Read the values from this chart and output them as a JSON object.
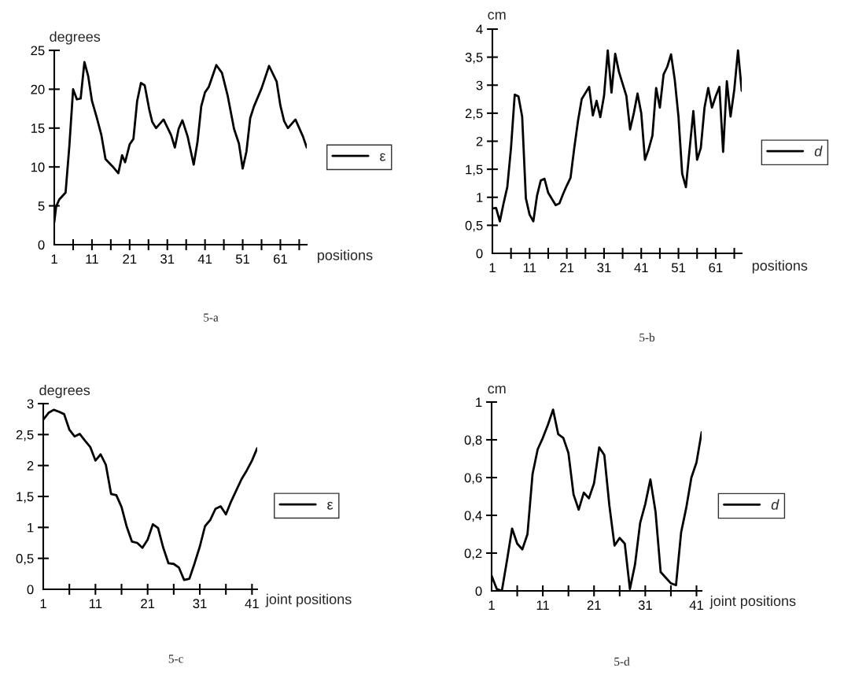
{
  "chart_data": [
    {
      "type": "line",
      "ylabel": "degrees",
      "xlabel": "positions",
      "legend": "right",
      "annotations": [
        "5-a"
      ],
      "xlim": [
        1,
        68
      ],
      "xticks": [
        1,
        {
          "value": 6,
          "label": null
        },
        11,
        {
          "value": 16,
          "label": null
        },
        21,
        {
          "value": 26,
          "label": null
        },
        31,
        {
          "value": 36,
          "label": null
        },
        41,
        {
          "value": 46,
          "label": null
        },
        51,
        {
          "value": 56,
          "label": null
        },
        61,
        {
          "value": 66,
          "label": null
        }
      ],
      "ylim": [
        0,
        25
      ],
      "yticks": [
        0,
        5,
        10,
        15,
        20,
        25
      ],
      "series": [
        {
          "name": "ε",
          "color": "#000000",
          "x": [
            1,
            1.5,
            2.3,
            4,
            5,
            6,
            7,
            8,
            9,
            10,
            11,
            12.3,
            13.5,
            14.6,
            16.4,
            18,
            19,
            19.8,
            21,
            22,
            23,
            24,
            25,
            26.2,
            27,
            28,
            30,
            32,
            33,
            34,
            35,
            36.4,
            38,
            39,
            40,
            41,
            42,
            44,
            45.5,
            47,
            48.7,
            50,
            51,
            52,
            53,
            54,
            56,
            58,
            60,
            61,
            62,
            63,
            65,
            67,
            68
          ],
          "values": [
            2.9,
            4.9,
            5.8,
            6.7,
            12.7,
            20,
            18.7,
            18.8,
            23.5,
            21.7,
            18.5,
            16.3,
            14.1,
            11,
            10.1,
            9.2,
            11.5,
            10.6,
            12.9,
            13.6,
            18.5,
            20.8,
            20.5,
            17.4,
            15.8,
            15,
            16.1,
            14.1,
            12.5,
            14.9,
            16,
            13.9,
            10.3,
            13.2,
            17.8,
            19.6,
            20.3,
            23.1,
            22.1,
            19.2,
            14.9,
            13,
            9.8,
            12,
            16.3,
            17.8,
            20.1,
            23,
            21,
            17.9,
            15.9,
            15,
            16.1,
            13.9,
            12.5
          ]
        }
      ]
    },
    {
      "type": "line",
      "ylabel": "cm",
      "xlabel": "positions",
      "legend": "right",
      "annotations": [
        "5-b"
      ],
      "xlim": [
        1,
        68
      ],
      "xticks": [
        1,
        {
          "value": 6,
          "label": null
        },
        11,
        {
          "value": 16,
          "label": null
        },
        21,
        {
          "value": 26,
          "label": null
        },
        31,
        {
          "value": 36,
          "label": null
        },
        41,
        {
          "value": 46,
          "label": null
        },
        51,
        {
          "value": 56,
          "label": null
        },
        61,
        {
          "value": 66,
          "label": null
        }
      ],
      "ylim": [
        0,
        4
      ],
      "yticks": [
        0,
        {
          "value": 0.5,
          "label": "0,5"
        },
        1,
        {
          "value": 1.5,
          "label": "1,5"
        },
        2,
        {
          "value": 2.5,
          "label": "2,5"
        },
        3,
        {
          "value": 3.5,
          "label": "3,5"
        },
        4
      ],
      "series": [
        {
          "name": "d",
          "color": "#000000",
          "x": [
            1,
            2,
            3,
            4,
            5,
            6,
            7,
            8,
            9,
            10,
            11,
            12,
            13,
            14,
            15,
            16,
            18,
            19,
            20,
            21,
            22,
            23,
            24,
            25,
            27,
            28,
            29,
            30,
            31,
            32,
            33,
            34,
            35,
            37,
            38,
            39,
            40,
            41,
            42,
            43,
            44,
            45,
            46,
            47,
            48,
            49,
            50,
            51,
            52,
            53,
            54,
            55,
            56,
            57,
            58,
            59,
            60,
            61,
            62,
            63,
            64,
            65,
            66,
            67,
            68
          ],
          "values": [
            0.8,
            0.81,
            0.57,
            0.89,
            1.18,
            1.88,
            2.83,
            2.8,
            2.44,
            0.98,
            0.69,
            0.57,
            1.03,
            1.3,
            1.33,
            1.08,
            0.86,
            0.89,
            1.06,
            1.21,
            1.35,
            1.88,
            2.36,
            2.75,
            2.97,
            2.46,
            2.72,
            2.43,
            2.81,
            3.62,
            2.87,
            3.56,
            3.24,
            2.81,
            2.21,
            2.5,
            2.85,
            2.5,
            1.67,
            1.86,
            2.1,
            2.95,
            2.6,
            3.19,
            3.33,
            3.55,
            3.1,
            2.44,
            1.42,
            1.18,
            1.86,
            2.54,
            1.67,
            1.88,
            2.6,
            2.95,
            2.6,
            2.8,
            2.97,
            1.81,
            3.07,
            2.44,
            2.92,
            3.62,
            2.9
          ]
        }
      ]
    },
    {
      "type": "line",
      "ylabel": "degrees",
      "xlabel": "joint positions",
      "legend": "right",
      "annotations": [
        "5-c"
      ],
      "xlim": [
        1,
        42
      ],
      "xticks": [
        1,
        {
          "value": 6,
          "label": null
        },
        11,
        {
          "value": 16,
          "label": null
        },
        21,
        {
          "value": 26,
          "label": null
        },
        31,
        {
          "value": 36,
          "label": null
        },
        41
      ],
      "ylim": [
        0,
        3
      ],
      "yticks": [
        0,
        {
          "value": 0.5,
          "label": "0,5"
        },
        1,
        {
          "value": 1.5,
          "label": "1,5"
        },
        2,
        {
          "value": 2.5,
          "label": "2,5"
        },
        3
      ],
      "series": [
        {
          "name": "ε",
          "color": "#000000",
          "x": [
            1,
            2,
            3,
            4,
            5,
            6,
            7,
            8,
            9,
            10,
            11,
            12,
            13,
            14,
            15,
            16,
            17,
            18,
            19,
            20,
            21,
            22,
            23,
            24,
            25,
            26,
            27,
            28,
            29,
            30,
            31,
            32,
            33,
            34,
            35,
            36,
            37,
            38,
            39,
            40,
            41,
            42
          ],
          "values": [
            2.74,
            2.85,
            2.9,
            2.87,
            2.83,
            2.58,
            2.47,
            2.51,
            2.4,
            2.3,
            2.08,
            2.18,
            2.01,
            1.54,
            1.52,
            1.33,
            1.01,
            0.77,
            0.75,
            0.67,
            0.8,
            1.05,
            0.99,
            0.67,
            0.42,
            0.41,
            0.35,
            0.15,
            0.17,
            0.42,
            0.69,
            1.02,
            1.12,
            1.3,
            1.34,
            1.21,
            1.42,
            1.6,
            1.78,
            1.92,
            2.08,
            2.28
          ]
        }
      ]
    },
    {
      "type": "line",
      "ylabel": "cm",
      "xlabel": "joint positions",
      "legend": "right",
      "annotations": [
        "5-d"
      ],
      "xlim": [
        1,
        42
      ],
      "xticks": [
        1,
        {
          "value": 6,
          "label": null
        },
        11,
        {
          "value": 16,
          "label": null
        },
        21,
        {
          "value": 26,
          "label": null
        },
        31,
        {
          "value": 36,
          "label": null
        },
        41
      ],
      "ylim": [
        0,
        1
      ],
      "yticks": [
        0,
        {
          "value": 0.2,
          "label": "0,2"
        },
        {
          "value": 0.4,
          "label": "0,4"
        },
        {
          "value": 0.6,
          "label": "0,6"
        },
        {
          "value": 0.8,
          "label": "0,8"
        },
        1
      ],
      "series": [
        {
          "name": "d",
          "color": "#000000",
          "x": [
            1,
            2,
            3,
            4,
            5,
            6,
            7,
            8,
            9,
            10,
            11,
            12,
            13,
            14,
            15,
            16,
            17,
            18,
            19,
            20,
            21,
            22,
            23,
            24,
            25,
            26,
            27,
            28,
            29,
            30,
            31,
            32,
            33,
            34,
            35,
            36,
            37,
            38,
            39,
            40,
            41,
            42
          ],
          "values": [
            0.08,
            0.01,
            0.0,
            0.16,
            0.33,
            0.25,
            0.22,
            0.3,
            0.62,
            0.75,
            0.81,
            0.88,
            0.96,
            0.83,
            0.81,
            0.73,
            0.51,
            0.43,
            0.52,
            0.49,
            0.57,
            0.76,
            0.72,
            0.45,
            0.24,
            0.28,
            0.25,
            0.01,
            0.14,
            0.36,
            0.46,
            0.59,
            0.42,
            0.1,
            0.07,
            0.04,
            0.03,
            0.31,
            0.44,
            0.6,
            0.68,
            0.84
          ]
        }
      ]
    }
  ]
}
